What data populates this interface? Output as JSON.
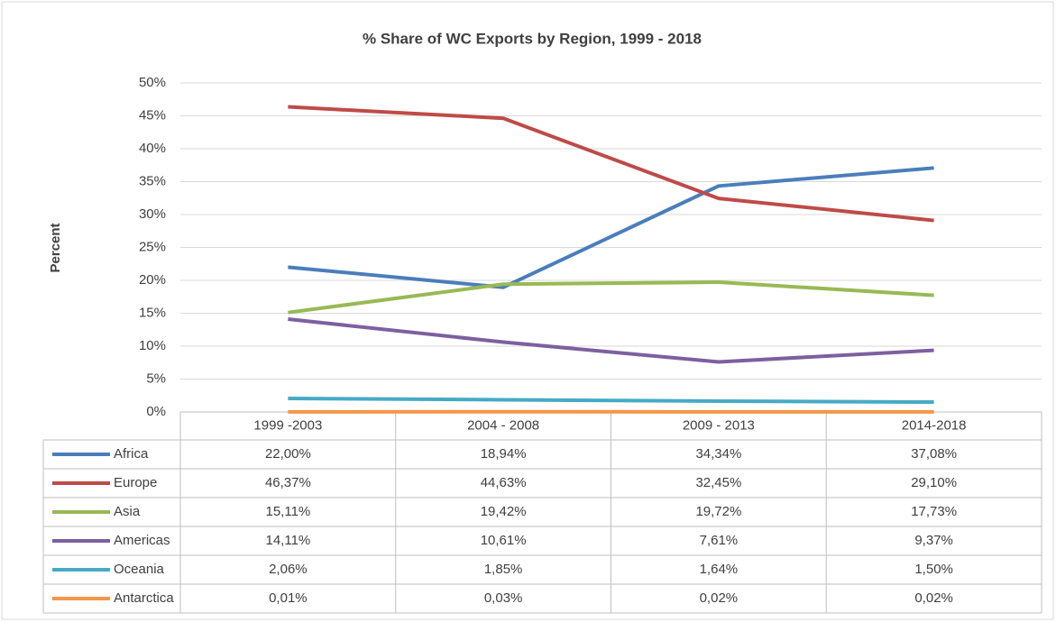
{
  "chart_data": {
    "type": "line",
    "title": "% Share of WC Exports by Region, 1999  - 2018",
    "y_label": "Percent",
    "categories": [
      "1999 -2003",
      "2004 - 2008",
      "2009 - 2013",
      "2014-2018"
    ],
    "ylim": [
      0,
      50
    ],
    "yticks": [
      {
        "value": 0,
        "label": "0%"
      },
      {
        "value": 5,
        "label": "5%"
      },
      {
        "value": 10,
        "label": "10%"
      },
      {
        "value": 15,
        "label": "15%"
      },
      {
        "value": 20,
        "label": "20%"
      },
      {
        "value": 25,
        "label": "25%"
      },
      {
        "value": 30,
        "label": "30%"
      },
      {
        "value": 35,
        "label": "35%"
      },
      {
        "value": 40,
        "label": "40%"
      },
      {
        "value": 45,
        "label": "45%"
      },
      {
        "value": 50,
        "label": "50%"
      }
    ],
    "grid": true,
    "series": [
      {
        "name": "Africa",
        "color": "#4a7ebb",
        "values": [
          22.0,
          18.94,
          34.34,
          37.08
        ],
        "value_labels": [
          "22,00%",
          "18,94%",
          "34,34%",
          "37,08%"
        ]
      },
      {
        "name": "Europe",
        "color": "#be4b48",
        "values": [
          46.37,
          44.63,
          32.45,
          29.1
        ],
        "value_labels": [
          "46,37%",
          "44,63%",
          "32,45%",
          "29,10%"
        ]
      },
      {
        "name": "Asia",
        "color": "#98b954",
        "values": [
          15.11,
          19.42,
          19.72,
          17.73
        ],
        "value_labels": [
          "15,11%",
          "19,42%",
          "19,72%",
          "17,73%"
        ]
      },
      {
        "name": "Americas",
        "color": "#7d60a0",
        "values": [
          14.11,
          10.61,
          7.61,
          9.37
        ],
        "value_labels": [
          "14,11%",
          "10,61%",
          "7,61%",
          "9,37%"
        ]
      },
      {
        "name": "Oceania",
        "color": "#46aac5",
        "values": [
          2.06,
          1.85,
          1.64,
          1.5
        ],
        "value_labels": [
          "2,06%",
          "1,85%",
          "1,64%",
          "1,50%"
        ]
      },
      {
        "name": "Antarctica",
        "color": "#f79646",
        "values": [
          0.01,
          0.03,
          0.02,
          0.02
        ],
        "value_labels": [
          "0,01%",
          "0,03%",
          "0,02%",
          "0,02%"
        ]
      }
    ]
  }
}
